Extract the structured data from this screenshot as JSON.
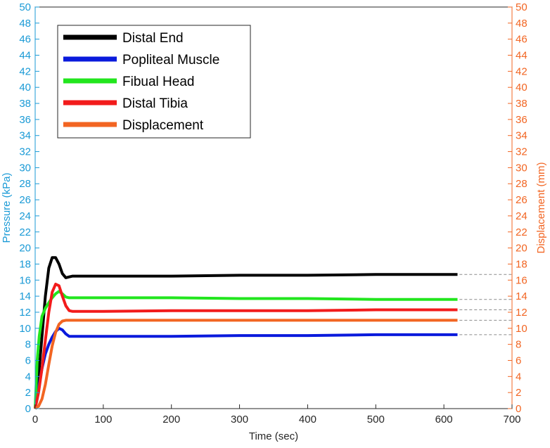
{
  "chart_data": {
    "type": "line",
    "xlabel": "Time (sec)",
    "ylabel_left": "Pressure (kPa)",
    "ylabel_right": "Displacement (mm)",
    "xlim": [
      0,
      700
    ],
    "xticks": [
      0,
      100,
      200,
      300,
      400,
      500,
      600,
      700
    ],
    "ylim_left": [
      0,
      50
    ],
    "ylim_right": [
      0,
      50
    ],
    "yticks": [
      0,
      2,
      4,
      6,
      8,
      10,
      12,
      14,
      16,
      18,
      20,
      22,
      24,
      26,
      28,
      30,
      32,
      34,
      36,
      38,
      40,
      42,
      44,
      46,
      48,
      50
    ],
    "left_axis_color": "#1a9ad6",
    "right_axis_color": "#f26522",
    "legend_position": "top-left",
    "grid": false,
    "series": [
      {
        "name": "Distal End",
        "color": "#000000",
        "axis": "left",
        "x": [
          0,
          5,
          10,
          15,
          20,
          25,
          30,
          35,
          40,
          45,
          50,
          55,
          60,
          100,
          200,
          300,
          400,
          500,
          620
        ],
        "y": [
          0,
          4,
          9,
          14,
          17.5,
          18.8,
          18.8,
          18.0,
          16.8,
          16.3,
          16.4,
          16.5,
          16.5,
          16.5,
          16.5,
          16.6,
          16.6,
          16.7,
          16.7
        ]
      },
      {
        "name": "Popliteal Muscle",
        "color": "#0a1adc",
        "axis": "left",
        "x": [
          0,
          5,
          10,
          15,
          20,
          25,
          30,
          35,
          40,
          45,
          50,
          55,
          60,
          100,
          200,
          300,
          400,
          500,
          620
        ],
        "y": [
          0,
          2.5,
          5,
          6.8,
          8.0,
          8.9,
          9.6,
          10.0,
          9.8,
          9.3,
          9.0,
          9.0,
          9.0,
          9.0,
          9.0,
          9.1,
          9.1,
          9.2,
          9.2
        ]
      },
      {
        "name": "Fibual Head",
        "color": "#22e61e",
        "axis": "left",
        "x": [
          0,
          3,
          6,
          10,
          15,
          20,
          25,
          30,
          35,
          40,
          45,
          50,
          60,
          100,
          200,
          300,
          400,
          500,
          620
        ],
        "y": [
          0,
          6,
          9,
          11.5,
          12.5,
          13.2,
          13.8,
          14.3,
          14.6,
          14.3,
          13.9,
          13.8,
          13.8,
          13.8,
          13.8,
          13.7,
          13.7,
          13.6,
          13.6
        ]
      },
      {
        "name": "Distal Tibia",
        "color": "#f21b1b",
        "axis": "left",
        "x": [
          0,
          5,
          10,
          15,
          20,
          25,
          30,
          35,
          40,
          45,
          50,
          55,
          60,
          100,
          200,
          300,
          400,
          500,
          620
        ],
        "y": [
          0,
          2,
          5,
          8.5,
          12,
          14.5,
          15.5,
          15.3,
          14.0,
          12.8,
          12.2,
          12.1,
          12.1,
          12.1,
          12.2,
          12.2,
          12.2,
          12.3,
          12.3
        ]
      },
      {
        "name": "Displacement",
        "color": "#f26522",
        "axis": "right",
        "x": [
          0,
          5,
          10,
          15,
          20,
          25,
          30,
          35,
          40,
          45,
          50,
          60,
          100,
          200,
          300,
          400,
          500,
          620
        ],
        "y": [
          0,
          0.3,
          1.2,
          3.0,
          5.5,
          7.8,
          9.5,
          10.5,
          10.9,
          11.0,
          11.0,
          11.0,
          11.0,
          11.0,
          11.0,
          11.0,
          11.0,
          11.0
        ]
      }
    ],
    "reference_lines": [
      16.7,
      13.6,
      12.3,
      11.0,
      9.2
    ]
  }
}
